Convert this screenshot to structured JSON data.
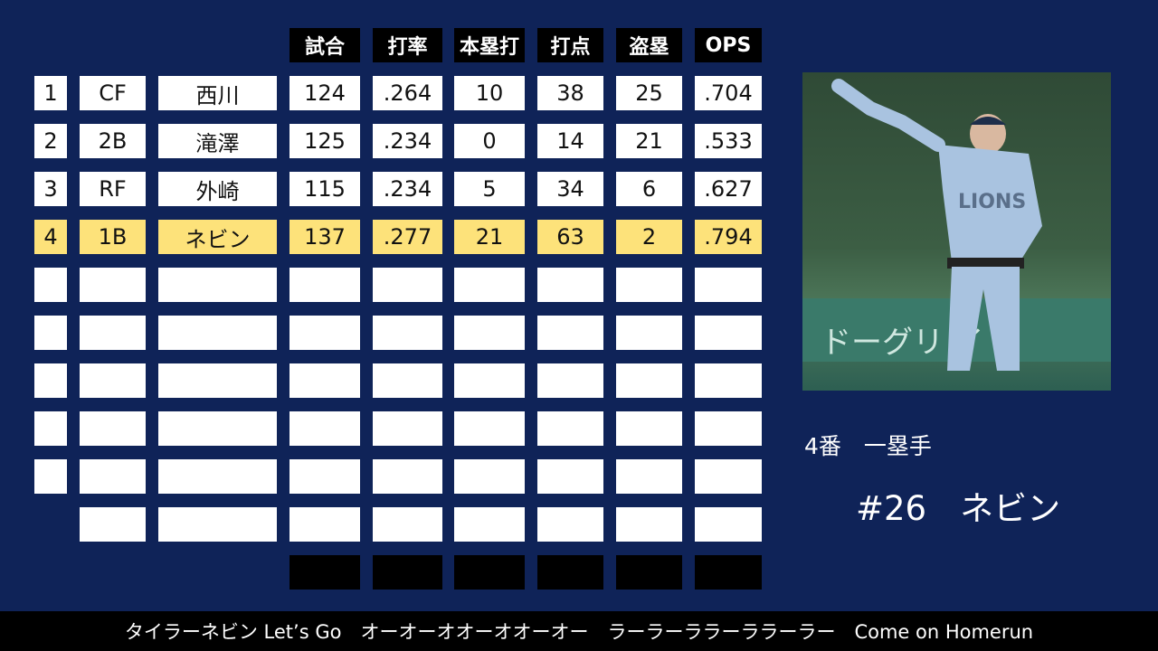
{
  "headers": [
    "試合",
    "打率",
    "本塁打",
    "打点",
    "盗塁",
    "OPS"
  ],
  "lineup": [
    {
      "order": "1",
      "pos": "CF",
      "name": "西川",
      "stats": [
        "124",
        ".264",
        "10",
        "38",
        "25",
        ".704"
      ],
      "highlight": false
    },
    {
      "order": "2",
      "pos": "2B",
      "name": "滝澤",
      "stats": [
        "125",
        ".234",
        "0",
        "14",
        "21",
        ".533"
      ],
      "highlight": false
    },
    {
      "order": "3",
      "pos": "RF",
      "name": "外崎",
      "stats": [
        "115",
        ".234",
        "5",
        "34",
        "6",
        ".627"
      ],
      "highlight": false
    },
    {
      "order": "4",
      "pos": "1B",
      "name": "ネビン",
      "stats": [
        "137",
        ".277",
        "21",
        "63",
        "2",
        ".794"
      ],
      "highlight": true
    }
  ],
  "player_info": {
    "line1": "4番　一塁手",
    "line2": "#26　ネビン"
  },
  "footer_text": "タイラーネビン Let’s Go　オーオーオオーオオーオー　ラーラーララーララーラー　Come on Homerun",
  "colors": {
    "background": "#0f2358",
    "highlight": "#fde27a",
    "header": "#000000"
  }
}
